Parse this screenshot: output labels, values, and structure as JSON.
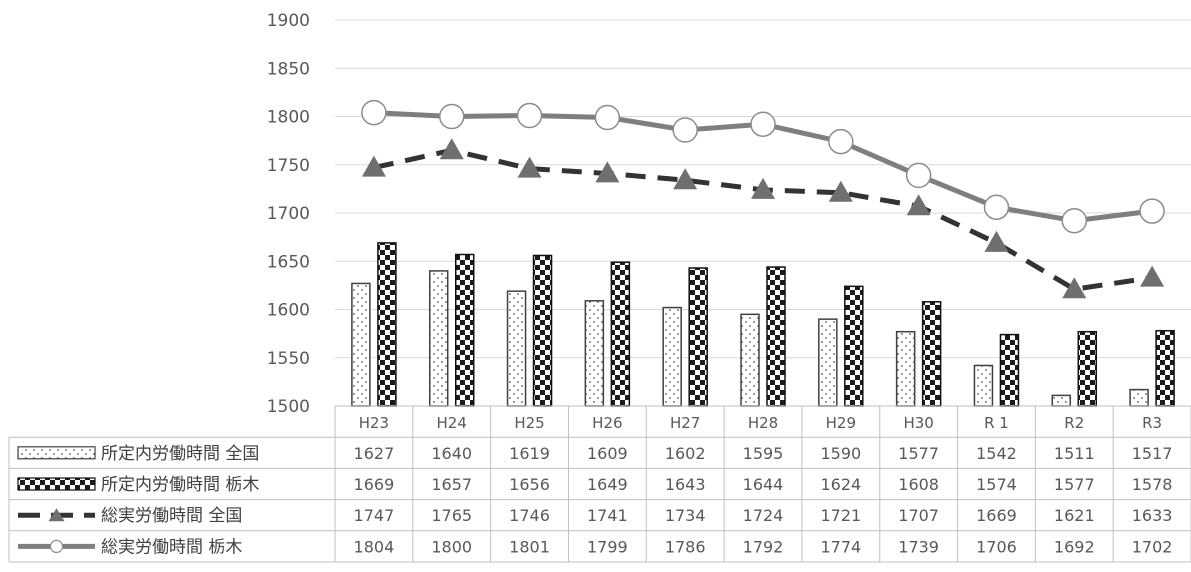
{
  "chart_data": {
    "type": "bar",
    "categories": [
      "H23",
      "H24",
      "H25",
      "H26",
      "H27",
      "H28",
      "H29",
      "H30",
      "R 1",
      "R2",
      "R3"
    ],
    "series": [
      {
        "name": "所定内労働時間 全国",
        "kind": "bar",
        "pattern": "dotted",
        "values": [
          1627,
          1640,
          1619,
          1609,
          1602,
          1595,
          1590,
          1577,
          1542,
          1511,
          1517
        ]
      },
      {
        "name": "所定内労働時間 栃木",
        "kind": "bar",
        "pattern": "checkered",
        "values": [
          1669,
          1657,
          1656,
          1649,
          1643,
          1644,
          1624,
          1608,
          1574,
          1577,
          1578
        ]
      },
      {
        "name": "総実労働時間 全国",
        "kind": "line",
        "style": "dashed",
        "marker": "triangle",
        "values": [
          1747,
          1765,
          1746,
          1741,
          1734,
          1724,
          1721,
          1707,
          1669,
          1621,
          1633
        ]
      },
      {
        "name": "総実労働時間 栃木",
        "kind": "line",
        "style": "solid",
        "marker": "circle",
        "values": [
          1804,
          1800,
          1801,
          1799,
          1786,
          1792,
          1774,
          1739,
          1706,
          1692,
          1702
        ]
      }
    ],
    "ylim": [
      1500,
      1900
    ],
    "yticks": [
      1500,
      1550,
      1600,
      1650,
      1700,
      1750,
      1800,
      1850,
      1900
    ],
    "grid": true,
    "legend": "data-table",
    "colors": {
      "line": "#7f7f7f",
      "grid": "#d9d9d9",
      "bar_dark": "#1a1a1a",
      "text": "#595959"
    }
  }
}
